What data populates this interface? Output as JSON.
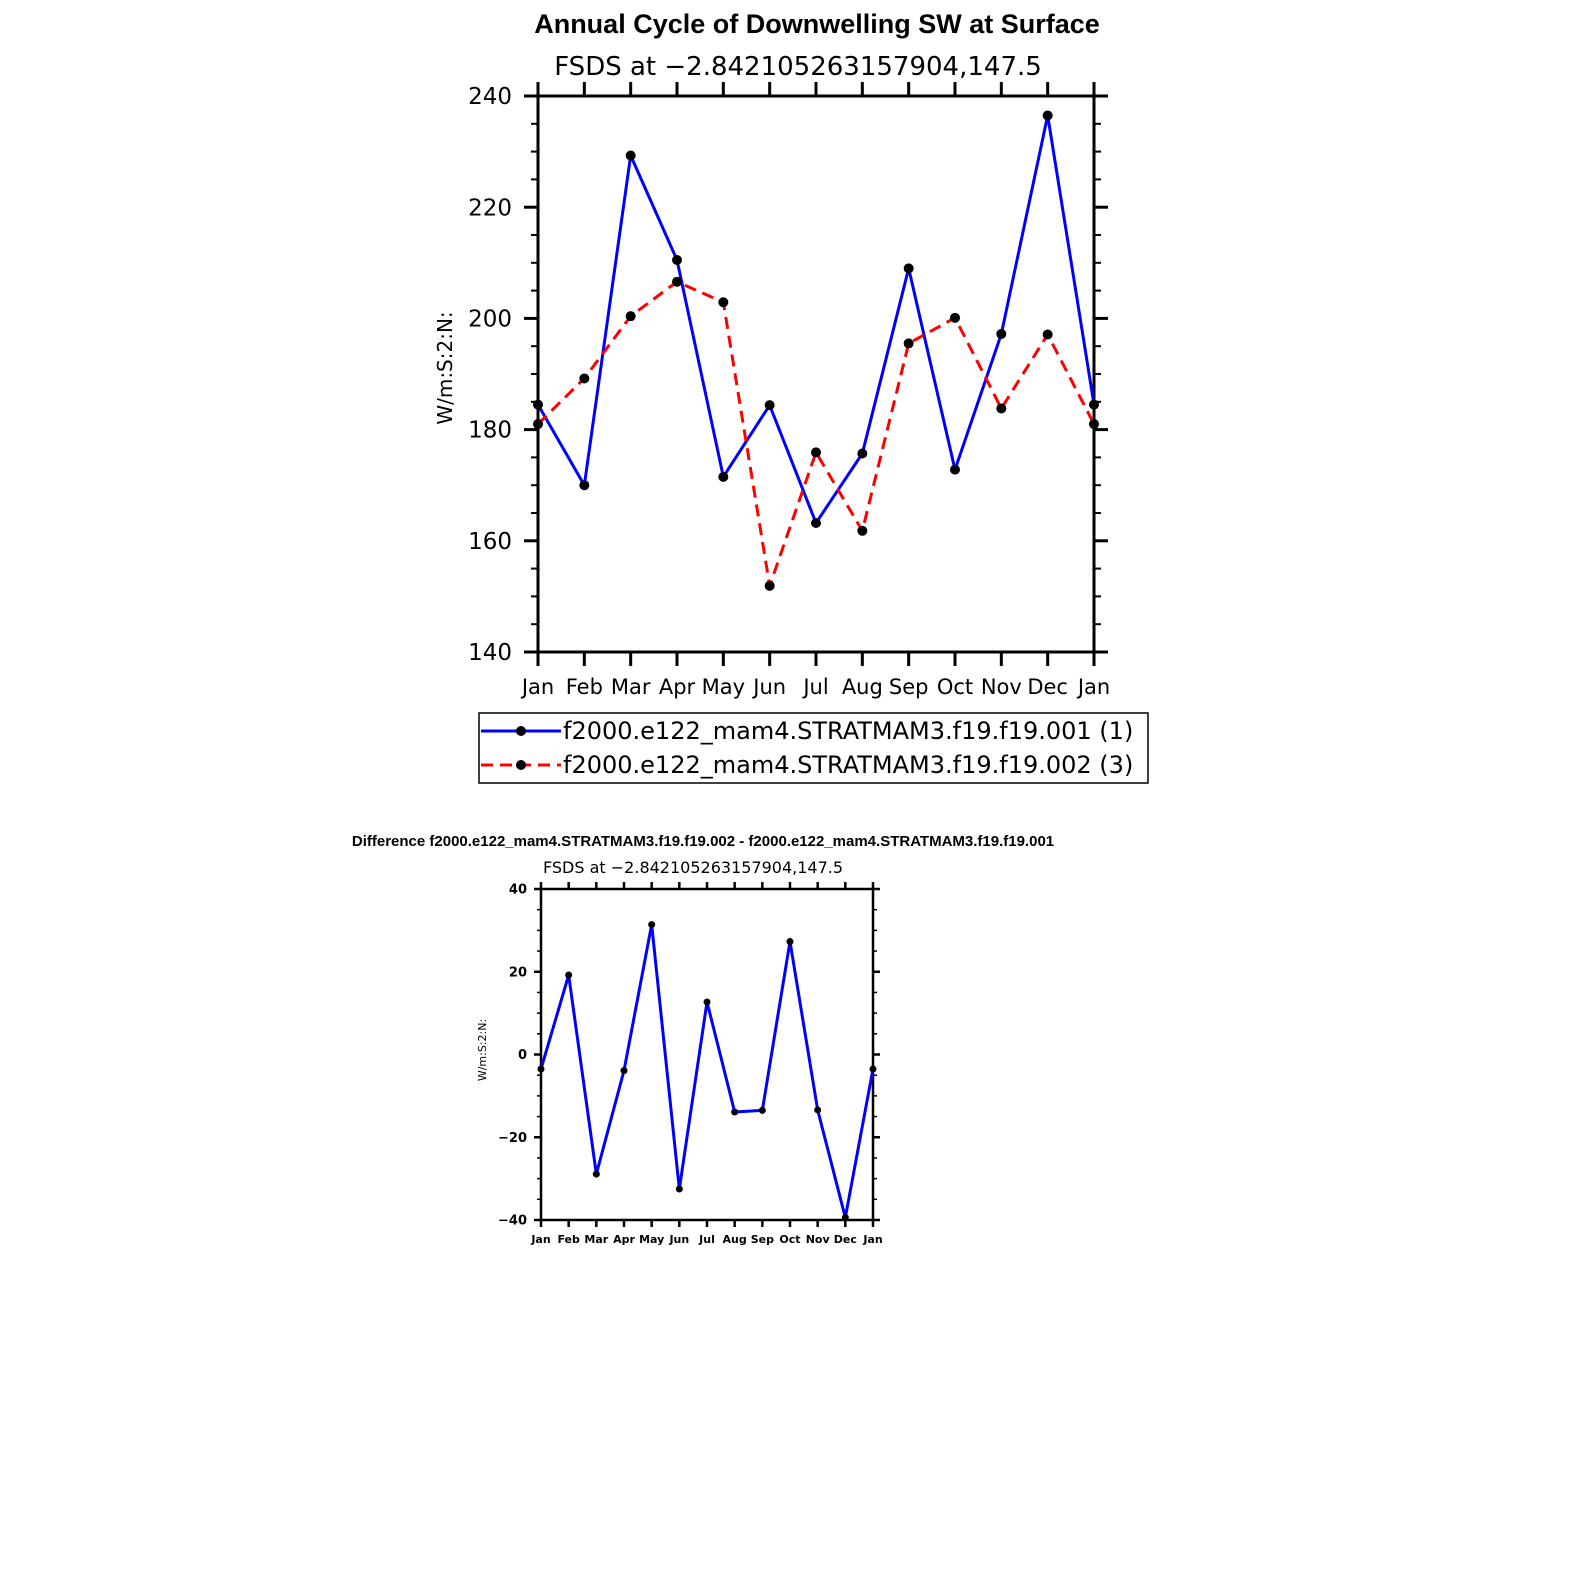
{
  "chart_data": [
    {
      "type": "line",
      "title": "Annual Cycle of Downwelling SW at Surface",
      "subtitle": "FSDS at −2.842105263157904,147.5",
      "ylabel": "W/m:S:2:N:",
      "xlabel": "",
      "ylim": [
        140,
        240
      ],
      "yticks": [
        "140",
        "160",
        "180",
        "200",
        "220",
        "240"
      ],
      "categories": [
        "Jan",
        "Feb",
        "Mar",
        "Apr",
        "May",
        "Jun",
        "Jul",
        "Aug",
        "Sep",
        "Oct",
        "Nov",
        "Dec",
        "Jan"
      ],
      "grid": false,
      "legend": "bottom",
      "series": [
        {
          "name": "f2000.e122_mam4.STRATMAM3.f19.f19.001 (1)",
          "color": "#0000ff",
          "style": "solid",
          "values": [
            184.5,
            170.0,
            229.3,
            210.5,
            171.5,
            184.4,
            163.2,
            175.7,
            209.0,
            172.8,
            197.2,
            236.5,
            184.5
          ]
        },
        {
          "name": "f2000.e122_mam4.STRATMAM3.f19.f19.002 (3)",
          "color": "#ff0000",
          "style": "dashed",
          "values": [
            181.0,
            189.2,
            200.4,
            206.6,
            202.9,
            151.9,
            175.9,
            161.8,
            195.5,
            200.1,
            183.8,
            197.1,
            181.0
          ]
        }
      ]
    },
    {
      "type": "line",
      "title": "Difference f2000.e122_mam4.STRATMAM3.f19.f19.002 - f2000.e122_mam4.STRATMAM3.f19.f19.001",
      "subtitle": "FSDS at −2.842105263157904,147.5",
      "ylabel": "W/m:S:2:N:",
      "xlabel": "",
      "ylim": [
        -40,
        40
      ],
      "yticks": [
        "−40",
        "−20",
        "0",
        "20",
        "40"
      ],
      "categories": [
        "Jan",
        "Feb",
        "Mar",
        "Apr",
        "May",
        "Jun",
        "Jul",
        "Aug",
        "Sep",
        "Oct",
        "Nov",
        "Dec",
        "Jan"
      ],
      "grid": false,
      "series": [
        {
          "color": "#0000ff",
          "style": "solid",
          "values": [
            -3.5,
            19.2,
            -28.9,
            -3.9,
            31.4,
            -32.5,
            12.7,
            -13.9,
            -13.5,
            27.3,
            -13.4,
            -39.4,
            -3.5
          ]
        }
      ]
    }
  ]
}
